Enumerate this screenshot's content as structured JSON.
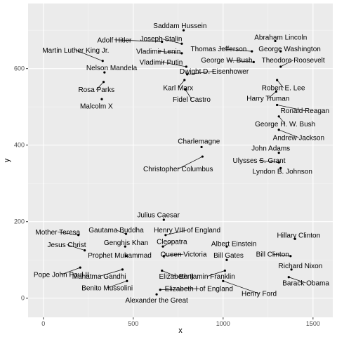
{
  "chart_data": {
    "type": "scatter",
    "xlabel": "x",
    "ylabel": "y",
    "xlim": [
      -85,
      1610
    ],
    "ylim": [
      -50,
      770
    ],
    "x_ticks": [
      0,
      500,
      1000,
      1500
    ],
    "y_ticks": [
      0,
      200,
      400,
      600
    ],
    "grid": true,
    "colors": {
      "panel": "#ebebeb",
      "grid_major": "#ffffff",
      "point": "#000000"
    },
    "points": [
      {
        "label": "Saddam Hussein",
        "x": 780,
        "y": 700,
        "lx": 760,
        "ly": 712
      },
      {
        "label": "Adolf Hitler",
        "x": 660,
        "y": 670,
        "lx": 395,
        "ly": 675
      },
      {
        "label": "Joseph Stalin",
        "x": 770,
        "y": 665,
        "lx": 655,
        "ly": 678
      },
      {
        "label": "Abraham Lincoln",
        "x": 1290,
        "y": 672,
        "lx": 1320,
        "ly": 682
      },
      {
        "label": "Vladimir Lenin",
        "x": 770,
        "y": 640,
        "lx": 640,
        "ly": 645
      },
      {
        "label": "Thomas Jefferson",
        "x": 1160,
        "y": 645,
        "lx": 975,
        "ly": 652
      },
      {
        "label": "George Washington",
        "x": 1320,
        "y": 645,
        "lx": 1370,
        "ly": 652
      },
      {
        "label": "Martin Luther King Jr.",
        "x": 330,
        "y": 620,
        "lx": 180,
        "ly": 648
      },
      {
        "label": "George W. Bush",
        "x": 1170,
        "y": 617,
        "lx": 1020,
        "ly": 622
      },
      {
        "label": "Theodore Roosevelt",
        "x": 1320,
        "y": 605,
        "lx": 1390,
        "ly": 622
      },
      {
        "label": "Vladimir Putin",
        "x": 795,
        "y": 605,
        "lx": 655,
        "ly": 617
      },
      {
        "label": "Nelson Mandela",
        "x": 340,
        "y": 590,
        "lx": 380,
        "ly": 602
      },
      {
        "label": "Dwight D. Eisenhower",
        "x": 800,
        "y": 585,
        "lx": 950,
        "ly": 593
      },
      {
        "label": "Rosa Parks",
        "x": 335,
        "y": 565,
        "lx": 295,
        "ly": 545
      },
      {
        "label": "Karl Marx",
        "x": 785,
        "y": 570,
        "lx": 750,
        "ly": 550
      },
      {
        "label": "Robert E. Lee",
        "x": 1300,
        "y": 570,
        "lx": 1335,
        "ly": 550
      },
      {
        "label": "Fidel Castro",
        "x": 790,
        "y": 545,
        "lx": 825,
        "ly": 520
      },
      {
        "label": "Harry Truman",
        "x": 1295,
        "y": 540,
        "lx": 1250,
        "ly": 522
      },
      {
        "label": "Malcolm X",
        "x": 325,
        "y": 520,
        "lx": 295,
        "ly": 502
      },
      {
        "label": "Ronald Reagan",
        "x": 1300,
        "y": 505,
        "lx": 1455,
        "ly": 490
      },
      {
        "label": "George H. W. Bush",
        "x": 1310,
        "y": 475,
        "lx": 1345,
        "ly": 455
      },
      {
        "label": "Andrew Jackson",
        "x": 1310,
        "y": 440,
        "lx": 1420,
        "ly": 420
      },
      {
        "label": "Charlemagne",
        "x": 880,
        "y": 395,
        "lx": 865,
        "ly": 410
      },
      {
        "label": "John Adams",
        "x": 1310,
        "y": 380,
        "lx": 1265,
        "ly": 392
      },
      {
        "label": "Ulysses S. Grant",
        "x": 1310,
        "y": 355,
        "lx": 1200,
        "ly": 360
      },
      {
        "label": "Christopher Columbus",
        "x": 885,
        "y": 370,
        "lx": 750,
        "ly": 338
      },
      {
        "label": "Lyndon B. Johnson",
        "x": 1320,
        "y": 340,
        "lx": 1330,
        "ly": 332
      },
      {
        "label": "Julius Caesar",
        "x": 670,
        "y": 205,
        "lx": 640,
        "ly": 218
      },
      {
        "label": "Mother Teresa",
        "x": 195,
        "y": 165,
        "lx": 80,
        "ly": 173
      },
      {
        "label": "Gautama Buddha",
        "x": 460,
        "y": 168,
        "lx": 405,
        "ly": 178
      },
      {
        "label": "Henry VIII of England",
        "x": 680,
        "y": 165,
        "lx": 800,
        "ly": 178
      },
      {
        "label": "Hillary Clinton",
        "x": 1400,
        "y": 155,
        "lx": 1420,
        "ly": 165
      },
      {
        "label": "Genghis Khan",
        "x": 455,
        "y": 135,
        "lx": 460,
        "ly": 145
      },
      {
        "label": "Cleopatra",
        "x": 665,
        "y": 135,
        "lx": 715,
        "ly": 148
      },
      {
        "label": "Jesus Christ",
        "x": 230,
        "y": 125,
        "lx": 130,
        "ly": 140
      },
      {
        "label": "Albert Einstein",
        "x": 1020,
        "y": 135,
        "lx": 1060,
        "ly": 143
      },
      {
        "label": "Prophet Muhammad",
        "x": 460,
        "y": 110,
        "lx": 425,
        "ly": 112
      },
      {
        "label": "Queen Victoria",
        "x": 670,
        "y": 110,
        "lx": 780,
        "ly": 115
      },
      {
        "label": "Bill Gates",
        "x": 1020,
        "y": 100,
        "lx": 1030,
        "ly": 112
      },
      {
        "label": "Bill Clinton",
        "x": 1375,
        "y": 110,
        "lx": 1275,
        "ly": 115
      },
      {
        "label": "Richard Nixon",
        "x": 1380,
        "y": 75,
        "lx": 1430,
        "ly": 85
      },
      {
        "label": "Pope John Paul II",
        "x": 205,
        "y": 80,
        "lx": 100,
        "ly": 62
      },
      {
        "label": "Mahatma Gandhi",
        "x": 440,
        "y": 75,
        "lx": 310,
        "ly": 57
      },
      {
        "label": "Elizabeth II",
        "x": 660,
        "y": 72,
        "lx": 740,
        "ly": 57
      },
      {
        "label": "Benjamin Franklin",
        "x": 1010,
        "y": 72,
        "lx": 910,
        "ly": 57
      },
      {
        "label": "Barack Obama",
        "x": 1365,
        "y": 55,
        "lx": 1460,
        "ly": 40
      },
      {
        "label": "Benito Mussolini",
        "x": 465,
        "y": 45,
        "lx": 355,
        "ly": 27
      },
      {
        "label": "Elizabeth I of England",
        "x": 650,
        "y": 22,
        "lx": 865,
        "ly": 25
      },
      {
        "label": "Henry Ford",
        "x": 1000,
        "y": 45,
        "lx": 1200,
        "ly": 12
      },
      {
        "label": "Alexander the Great",
        "x": 630,
        "y": 10,
        "lx": 630,
        "ly": -5
      }
    ]
  }
}
